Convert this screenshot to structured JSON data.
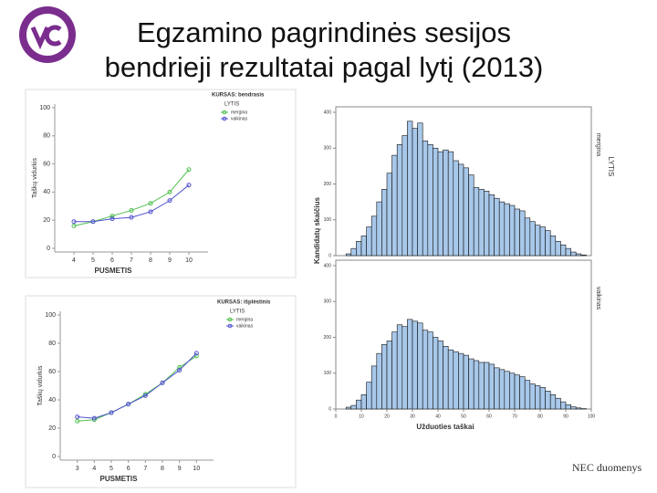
{
  "title": [
    "Egzamino pagrindinės sesijos",
    "bendrieji rezultatai pagal lytį (2013)"
  ],
  "source": "NEC duomenys",
  "chart_data": [
    {
      "type": "line",
      "title": "KURSAS: bendrasis",
      "x_label": "PUSMETIS",
      "y_label": "Taškų vidurkis",
      "legend_title": "LYTIS",
      "x": [
        4,
        5,
        6,
        7,
        8,
        9,
        10
      ],
      "xlim": [
        3,
        11
      ],
      "xticks": [
        4,
        5,
        6,
        7,
        8,
        9,
        10
      ],
      "ylim": [
        0,
        100
      ],
      "yticks": [
        0,
        20,
        40,
        60,
        80,
        100
      ],
      "series": [
        {
          "name": "mergina",
          "color": "#4fbf4f",
          "values": [
            16,
            19,
            23,
            27,
            32,
            40,
            56
          ]
        },
        {
          "name": "vaikinas",
          "color": "#5050d0",
          "values": [
            19,
            19,
            21,
            22,
            26,
            34,
            45
          ]
        }
      ]
    },
    {
      "type": "line",
      "title": "KURSAS: išplėstinis",
      "x_label": "PUSMETIS",
      "y_label": "Taškų vidurkis",
      "legend_title": "LYTIS",
      "x": [
        3,
        4,
        5,
        6,
        7,
        8,
        9,
        10
      ],
      "xlim": [
        2,
        11
      ],
      "xticks": [
        3,
        4,
        5,
        6,
        7,
        8,
        9,
        10
      ],
      "ylim": [
        0,
        100
      ],
      "yticks": [
        0,
        20,
        40,
        60,
        80,
        100
      ],
      "series": [
        {
          "name": "mergina",
          "color": "#4fbf4f",
          "values": [
            25,
            26,
            31,
            37,
            44,
            52,
            63,
            71
          ]
        },
        {
          "name": "vaikinas",
          "color": "#5050d0",
          "values": [
            28,
            27,
            31,
            37,
            43,
            52,
            61,
            73
          ]
        }
      ]
    },
    {
      "type": "histogram",
      "x_label": "Užduoties taškai",
      "y_label": "Kandidatų skaičius",
      "facet_label": "LYTIS",
      "bins": [
        0,
        2,
        4,
        6,
        8,
        10,
        12,
        14,
        16,
        18,
        20,
        22,
        24,
        26,
        28,
        30,
        32,
        34,
        36,
        38,
        40,
        42,
        44,
        46,
        48,
        50,
        52,
        54,
        56,
        58,
        60,
        62,
        64,
        66,
        68,
        70,
        72,
        74,
        76,
        78,
        80,
        82,
        84,
        86,
        88,
        90,
        92,
        94,
        96,
        98,
        100
      ],
      "xlim": [
        0,
        100
      ],
      "xticks": [
        0,
        10,
        20,
        30,
        40,
        50,
        60,
        70,
        80,
        90,
        100
      ],
      "ylim": [
        0,
        400
      ],
      "yticks": [
        0,
        100,
        200,
        300,
        400
      ],
      "color": "#a8c8ea",
      "panels": [
        {
          "name": "mergina",
          "values": [
            0,
            0,
            5,
            20,
            40,
            55,
            80,
            110,
            150,
            185,
            230,
            280,
            310,
            335,
            375,
            355,
            370,
            320,
            310,
            300,
            290,
            295,
            290,
            265,
            255,
            245,
            225,
            190,
            185,
            180,
            170,
            160,
            150,
            145,
            140,
            130,
            125,
            105,
            95,
            85,
            80,
            70,
            55,
            40,
            30,
            20,
            10,
            5,
            2,
            0
          ]
        },
        {
          "name": "vaikinas",
          "values": [
            0,
            0,
            5,
            10,
            25,
            40,
            75,
            120,
            155,
            180,
            190,
            215,
            235,
            230,
            250,
            245,
            240,
            220,
            215,
            200,
            190,
            175,
            165,
            160,
            155,
            150,
            140,
            135,
            130,
            130,
            125,
            115,
            110,
            105,
            100,
            95,
            90,
            80,
            70,
            65,
            60,
            50,
            40,
            30,
            20,
            12,
            6,
            3,
            1,
            0
          ]
        }
      ]
    }
  ]
}
